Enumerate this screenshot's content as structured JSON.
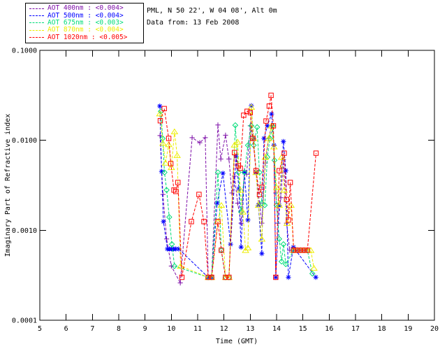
{
  "header": {
    "line1": "PML, N 50 22', W 04 08', Alt 0m",
    "line2": "Data from: 13 Feb 2008"
  },
  "legend": {
    "items": [
      {
        "label": "AOT  400nm : <0.004>",
        "color": "#7D0EA8"
      },
      {
        "label": "AOT  500nm : <0.004>",
        "color": "#0000FF"
      },
      {
        "label": "AOT  675nm : <0.003>",
        "color": "#00DC78"
      },
      {
        "label": "AOT  870nm : <0.004>",
        "color": "#EDED00"
      },
      {
        "label": "AOT 1020nm : <0.005>",
        "color": "#FF0000"
      }
    ]
  },
  "chart_data": {
    "type": "line",
    "xlabel": "Time (GMT)",
    "ylabel": "Imaginary Part of Refractive index",
    "xlim": [
      5,
      20
    ],
    "ylim": [
      0.0001,
      0.1
    ],
    "yscale": "log",
    "grid": false,
    "legend_position": "top-left",
    "xticks": [
      5,
      6,
      7,
      8,
      9,
      10,
      11,
      12,
      13,
      14,
      15,
      16,
      17,
      18,
      19,
      20
    ],
    "yticks": [
      {
        "value": 0.1,
        "label": "0.1000"
      },
      {
        "value": 0.01,
        "label": "0.0100"
      },
      {
        "value": 0.001,
        "label": "0.0010"
      },
      {
        "value": 0.0001,
        "label": "0.0001"
      }
    ],
    "series": [
      {
        "name": "AOT 400nm",
        "wavelength_nm": 400,
        "mean_label": "<0.004>",
        "color": "#7D0EA8",
        "marker": "plus",
        "linestyle": "dashed",
        "points": [
          [
            9.57,
            0.0113
          ],
          [
            9.68,
            0.0025
          ],
          [
            9.82,
            0.0008
          ],
          [
            10.0,
            0.0004
          ],
          [
            10.34,
            0.00026
          ],
          [
            10.79,
            0.0107
          ],
          [
            11.08,
            0.0094
          ],
          [
            11.29,
            0.0107
          ],
          [
            11.4,
            0.0003
          ],
          [
            11.53,
            0.0003
          ],
          [
            11.77,
            0.0148
          ],
          [
            11.88,
            0.0062
          ],
          [
            12.06,
            0.0114
          ],
          [
            12.19,
            0.0062
          ],
          [
            12.3,
            0.0026
          ],
          [
            12.4,
            0.004
          ],
          [
            12.52,
            0.002
          ],
          [
            12.65,
            0.0012
          ],
          [
            12.78,
            0.0046
          ],
          [
            12.86,
            0.0042
          ],
          [
            13.0,
            0.0145
          ],
          [
            13.1,
            0.0105
          ],
          [
            13.22,
            0.0046
          ],
          [
            13.35,
            0.002
          ],
          [
            13.44,
            0.0012
          ],
          [
            13.57,
            0.0056
          ],
          [
            13.7,
            0.0105
          ],
          [
            13.81,
            0.0145
          ],
          [
            13.9,
            0.0088
          ],
          [
            13.97,
            0.0026
          ],
          [
            14.05,
            0.0012
          ],
          [
            14.16,
            0.0023
          ],
          [
            14.26,
            0.0061
          ],
          [
            14.38,
            0.0012
          ],
          [
            14.5,
            0.0006
          ],
          [
            14.65,
            0.0006
          ],
          [
            14.78,
            0.0006
          ],
          [
            14.91,
            0.0006
          ],
          [
            15.04,
            0.0006
          ],
          [
            15.17,
            0.0006
          ]
        ]
      },
      {
        "name": "AOT 500nm",
        "wavelength_nm": 500,
        "mean_label": "<0.004>",
        "color": "#0000FF",
        "marker": "asterisk",
        "linestyle": "dashed",
        "points": [
          [
            9.56,
            0.024
          ],
          [
            9.63,
            0.0045
          ],
          [
            9.7,
            0.00125
          ],
          [
            9.85,
            0.00062
          ],
          [
            9.93,
            0.00062
          ],
          [
            10.01,
            0.00062
          ],
          [
            10.09,
            0.00062
          ],
          [
            10.17,
            0.00062
          ],
          [
            10.28,
            0.00062
          ],
          [
            11.4,
            0.0003
          ],
          [
            11.53,
            0.0003
          ],
          [
            11.74,
            0.002
          ],
          [
            11.96,
            0.0043
          ],
          [
            12.25,
            0.0007
          ],
          [
            12.46,
            0.0066
          ],
          [
            12.57,
            0.0029
          ],
          [
            12.65,
            0.00065
          ],
          [
            12.78,
            0.0044
          ],
          [
            12.91,
            0.0013
          ],
          [
            13.04,
            0.0242
          ],
          [
            13.13,
            0.0105
          ],
          [
            13.22,
            0.0044
          ],
          [
            13.31,
            0.0019
          ],
          [
            13.44,
            0.00055
          ],
          [
            13.52,
            0.0105
          ],
          [
            13.65,
            0.0145
          ],
          [
            13.81,
            0.0196
          ],
          [
            13.9,
            0.0088
          ],
          [
            13.97,
            0.0003
          ],
          [
            14.1,
            0.0019
          ],
          [
            14.26,
            0.0097
          ],
          [
            14.35,
            0.0046
          ],
          [
            14.45,
            0.0003
          ],
          [
            14.64,
            0.00065
          ],
          [
            15.49,
            0.0003
          ]
        ]
      },
      {
        "name": "AOT 675nm",
        "wavelength_nm": 675,
        "mean_label": "<0.003>",
        "color": "#00DC78",
        "marker": "diamond",
        "linestyle": "dashed",
        "points": [
          [
            9.6,
            0.021
          ],
          [
            9.67,
            0.0105
          ],
          [
            9.74,
            0.0044
          ],
          [
            9.82,
            0.0028
          ],
          [
            9.92,
            0.0014
          ],
          [
            10.02,
            0.0007
          ],
          [
            10.12,
            0.0004
          ],
          [
            11.4,
            0.0003
          ],
          [
            11.53,
            0.0003
          ],
          [
            11.77,
            0.0044
          ],
          [
            11.9,
            0.0006
          ],
          [
            12.06,
            0.0003
          ],
          [
            12.19,
            0.0003
          ],
          [
            12.43,
            0.0147
          ],
          [
            12.55,
            0.0044
          ],
          [
            12.65,
            0.0016
          ],
          [
            12.78,
            0.0044
          ],
          [
            12.91,
            0.0088
          ],
          [
            13.04,
            0.0145
          ],
          [
            13.13,
            0.0088
          ],
          [
            13.26,
            0.014
          ],
          [
            13.35,
            0.0044
          ],
          [
            13.44,
            0.002
          ],
          [
            13.55,
            0.0019
          ],
          [
            13.65,
            0.0065
          ],
          [
            13.75,
            0.0105
          ],
          [
            13.85,
            0.0145
          ],
          [
            13.92,
            0.006
          ],
          [
            14.0,
            0.0019
          ],
          [
            14.1,
            0.0008
          ],
          [
            14.19,
            0.00045
          ],
          [
            14.26,
            0.0007
          ],
          [
            14.35,
            0.00042
          ],
          [
            14.65,
            0.0006
          ],
          [
            14.78,
            0.0006
          ],
          [
            14.91,
            0.0006
          ],
          [
            15.04,
            0.0006
          ],
          [
            15.17,
            0.0006
          ],
          [
            15.36,
            0.00033
          ]
        ]
      },
      {
        "name": "AOT 870nm",
        "wavelength_nm": 870,
        "mean_label": "<0.004>",
        "color": "#EDED00",
        "marker": "triangle",
        "linestyle": "dashed",
        "points": [
          [
            9.56,
            0.0198
          ],
          [
            9.68,
            0.0093
          ],
          [
            9.78,
            0.0056
          ],
          [
            9.9,
            0.009
          ],
          [
            10.0,
            0.005
          ],
          [
            10.12,
            0.0125
          ],
          [
            10.22,
            0.0068
          ],
          [
            10.35,
            0.0004
          ],
          [
            11.4,
            0.0003
          ],
          [
            11.53,
            0.0003
          ],
          [
            11.77,
            0.00125
          ],
          [
            11.9,
            0.0019
          ],
          [
            12.06,
            0.0003
          ],
          [
            12.19,
            0.0003
          ],
          [
            12.4,
            0.0089
          ],
          [
            12.52,
            0.0096
          ],
          [
            12.62,
            0.0028
          ],
          [
            12.72,
            0.0016
          ],
          [
            12.82,
            0.0006
          ],
          [
            12.91,
            0.00064
          ],
          [
            13.04,
            0.0234
          ],
          [
            13.13,
            0.0105
          ],
          [
            13.22,
            0.0044
          ],
          [
            13.31,
            0.0019
          ],
          [
            13.44,
            0.0008
          ],
          [
            13.57,
            0.0065
          ],
          [
            13.7,
            0.0105
          ],
          [
            13.81,
            0.0145
          ],
          [
            13.9,
            0.0085
          ],
          [
            14.0,
            0.003
          ],
          [
            14.1,
            0.0019
          ],
          [
            14.19,
            0.0065
          ],
          [
            14.29,
            0.0028
          ],
          [
            14.4,
            0.0012
          ],
          [
            14.55,
            0.0019
          ],
          [
            14.65,
            0.0006
          ],
          [
            14.78,
            0.0006
          ],
          [
            14.91,
            0.0006
          ],
          [
            15.04,
            0.0006
          ],
          [
            15.17,
            0.0006
          ],
          [
            15.3,
            0.0006
          ],
          [
            15.42,
            0.00038
          ]
        ]
      },
      {
        "name": "AOT 1020nm",
        "wavelength_nm": 1020,
        "mean_label": "<0.005>",
        "color": "#FF0000",
        "marker": "square",
        "linestyle": "dashed",
        "points": [
          [
            9.58,
            0.0165
          ],
          [
            9.73,
            0.0225
          ],
          [
            9.9,
            0.0105
          ],
          [
            9.98,
            0.0055
          ],
          [
            10.1,
            0.0028
          ],
          [
            10.17,
            0.0027
          ],
          [
            10.25,
            0.0034
          ],
          [
            10.4,
            0.0003
          ],
          [
            10.76,
            0.00125
          ],
          [
            11.05,
            0.0025
          ],
          [
            11.24,
            0.00125
          ],
          [
            11.4,
            0.0003
          ],
          [
            11.53,
            0.0003
          ],
          [
            11.77,
            0.00125
          ],
          [
            11.9,
            0.0006
          ],
          [
            12.06,
            0.0003
          ],
          [
            12.19,
            0.0003
          ],
          [
            12.4,
            0.0073
          ],
          [
            12.55,
            0.0052
          ],
          [
            12.62,
            0.0049
          ],
          [
            12.75,
            0.019
          ],
          [
            12.88,
            0.021
          ],
          [
            13.0,
            0.0203
          ],
          [
            13.1,
            0.0105
          ],
          [
            13.22,
            0.0046
          ],
          [
            13.35,
            0.0025
          ],
          [
            13.44,
            0.003
          ],
          [
            13.6,
            0.0164
          ],
          [
            13.72,
            0.024
          ],
          [
            13.79,
            0.0316
          ],
          [
            13.88,
            0.0145
          ],
          [
            13.97,
            0.0003
          ],
          [
            14.1,
            0.0046
          ],
          [
            14.29,
            0.0072
          ],
          [
            14.38,
            0.0022
          ],
          [
            14.45,
            0.0013
          ],
          [
            14.52,
            0.0034
          ],
          [
            14.65,
            0.0006
          ],
          [
            14.78,
            0.0006
          ],
          [
            14.91,
            0.0006
          ],
          [
            15.04,
            0.0006
          ],
          [
            15.17,
            0.0006
          ],
          [
            15.5,
            0.0072
          ]
        ]
      }
    ]
  }
}
